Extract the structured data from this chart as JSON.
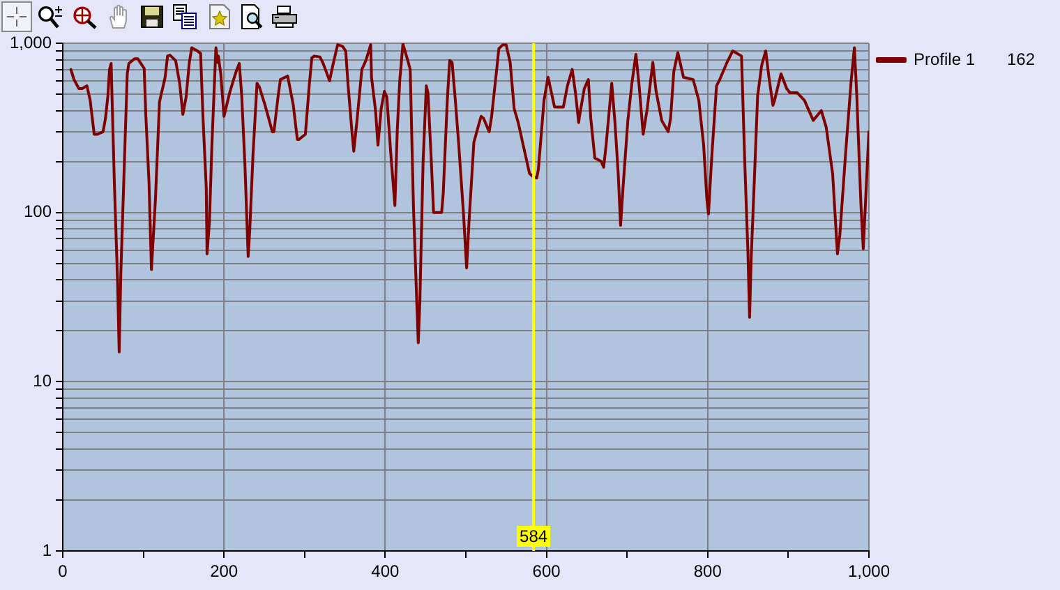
{
  "chart_data": {
    "type": "line",
    "x": [
      10,
      14,
      20,
      24,
      30,
      34,
      39,
      43,
      50,
      53,
      56,
      58,
      60,
      64,
      68,
      70,
      72,
      76,
      80,
      82,
      89,
      93,
      101,
      103,
      107,
      110,
      115,
      120,
      127,
      130,
      133,
      140,
      145,
      149,
      153,
      157,
      160,
      167,
      171,
      174,
      178,
      179,
      182,
      185,
      188,
      190,
      192,
      193,
      196,
      200,
      207,
      215,
      219,
      222,
      226,
      230,
      232,
      236,
      241,
      244,
      251,
      260,
      262,
      267,
      270,
      279,
      286,
      291,
      293,
      301,
      306,
      309,
      312,
      319,
      323,
      331,
      335,
      341,
      347,
      351,
      354,
      359,
      361,
      365,
      371,
      376,
      382,
      383,
      388,
      391,
      395,
      399,
      402,
      407,
      412,
      415,
      418,
      422,
      428,
      431,
      435,
      439,
      441,
      443,
      447,
      451,
      453,
      457,
      460,
      470,
      472,
      477,
      480,
      483,
      487,
      491,
      497,
      501,
      504,
      510,
      516,
      519,
      522,
      529,
      532,
      538,
      541,
      546,
      550,
      555,
      560,
      565,
      572,
      579,
      584,
      588,
      590,
      597,
      602,
      607,
      610,
      621,
      626,
      632,
      636,
      640,
      641,
      647,
      652,
      655,
      660,
      668,
      671,
      674,
      681,
      685,
      689,
      692,
      695,
      701,
      706,
      711,
      715,
      720,
      725,
      732,
      736,
      743,
      751,
      754,
      758,
      763,
      770,
      782,
      789,
      795,
      799,
      801,
      805,
      811,
      815,
      824,
      831,
      842,
      846,
      850,
      852,
      854,
      858,
      862,
      867,
      872,
      876,
      881,
      883,
      891,
      898,
      902,
      911,
      920,
      931,
      941,
      947,
      955,
      961,
      964,
      971,
      978,
      982,
      985,
      990,
      993,
      997,
      1000
    ],
    "series": [
      {
        "name": "Profile 1",
        "color": "#800000",
        "values": [
          700,
          610,
          540,
          540,
          560,
          460,
          290,
          290,
          300,
          360,
          490,
          700,
          760,
          150,
          39,
          15,
          43,
          170,
          660,
          760,
          810,
          810,
          710,
          380,
          150,
          46,
          120,
          450,
          630,
          840,
          850,
          790,
          580,
          380,
          480,
          770,
          940,
          900,
          870,
          360,
          140,
          57,
          89,
          250,
          560,
          940,
          770,
          840,
          660,
          370,
          510,
          680,
          760,
          490,
          190,
          55,
          79,
          220,
          580,
          550,
          430,
          300,
          300,
          480,
          610,
          640,
          430,
          270,
          270,
          290,
          580,
          820,
          840,
          830,
          760,
          600,
          740,
          980,
          960,
          900,
          560,
          290,
          230,
          350,
          700,
          790,
          980,
          630,
          400,
          250,
          410,
          520,
          480,
          220,
          110,
          310,
          600,
          990,
          790,
          700,
          110,
          31,
          17,
          30,
          200,
          560,
          510,
          210,
          100,
          100,
          130,
          460,
          790,
          770,
          460,
          260,
          100,
          47,
          89,
          260,
          330,
          370,
          360,
          300,
          370,
          680,
          930,
          980,
          980,
          770,
          410,
          340,
          240,
          170,
          162,
          160,
          180,
          460,
          630,
          490,
          420,
          420,
          560,
          700,
          510,
          340,
          370,
          540,
          610,
          360,
          210,
          200,
          185,
          250,
          580,
          340,
          170,
          84,
          140,
          350,
          580,
          860,
          560,
          290,
          410,
          770,
          520,
          350,
          300,
          360,
          680,
          880,
          630,
          610,
          460,
          250,
          120,
          98,
          210,
          560,
          610,
          770,
          900,
          840,
          200,
          57,
          24,
          54,
          160,
          490,
          740,
          900,
          630,
          430,
          460,
          660,
          540,
          510,
          510,
          460,
          350,
          400,
          320,
          170,
          57,
          74,
          220,
          600,
          940,
          490,
          115,
          61,
          150,
          300
        ]
      }
    ],
    "xlim": [
      0,
      1000
    ],
    "ylim": [
      1,
      1000
    ],
    "xticks": [
      0,
      {
        "value": 100,
        "label": null
      },
      200,
      {
        "value": 300,
        "label": null
      },
      400,
      {
        "value": 500,
        "label": null
      },
      600,
      {
        "value": 700,
        "label": null
      },
      800,
      {
        "value": 900,
        "label": null
      },
      {
        "value": 1000,
        "label": "1,000"
      }
    ],
    "yticks": [
      1,
      {
        "value": 2,
        "label": null
      },
      {
        "value": 3,
        "label": null
      },
      {
        "value": 4,
        "label": null
      },
      {
        "value": 5,
        "label": null
      },
      {
        "value": 6,
        "label": null
      },
      {
        "value": 7,
        "label": null
      },
      {
        "value": 8,
        "label": null
      },
      {
        "value": 9,
        "label": null
      },
      10,
      {
        "value": 20,
        "label": null
      },
      {
        "value": 30,
        "label": null
      },
      {
        "value": 40,
        "label": null
      },
      {
        "value": 50,
        "label": null
      },
      {
        "value": 60,
        "label": null
      },
      {
        "value": 70,
        "label": null
      },
      {
        "value": 80,
        "label": null
      },
      {
        "value": 90,
        "label": null
      },
      100,
      {
        "value": 200,
        "label": null
      },
      {
        "value": 300,
        "label": null
      },
      {
        "value": 400,
        "label": null
      },
      {
        "value": 500,
        "label": null
      },
      {
        "value": 600,
        "label": null
      },
      {
        "value": 700,
        "label": null
      },
      {
        "value": 800,
        "label": null
      },
      {
        "value": 900,
        "label": null
      },
      {
        "value": 1000,
        "label": "1,000"
      }
    ],
    "log": "y",
    "grid": true,
    "legend": "top right",
    "marker": "none",
    "line_style": "solid",
    "ref_lines": [
      {
        "axis": "x",
        "value": 584,
        "label": "584",
        "color": "#ffff00"
      }
    ],
    "annotations": [
      "162"
    ]
  }
}
